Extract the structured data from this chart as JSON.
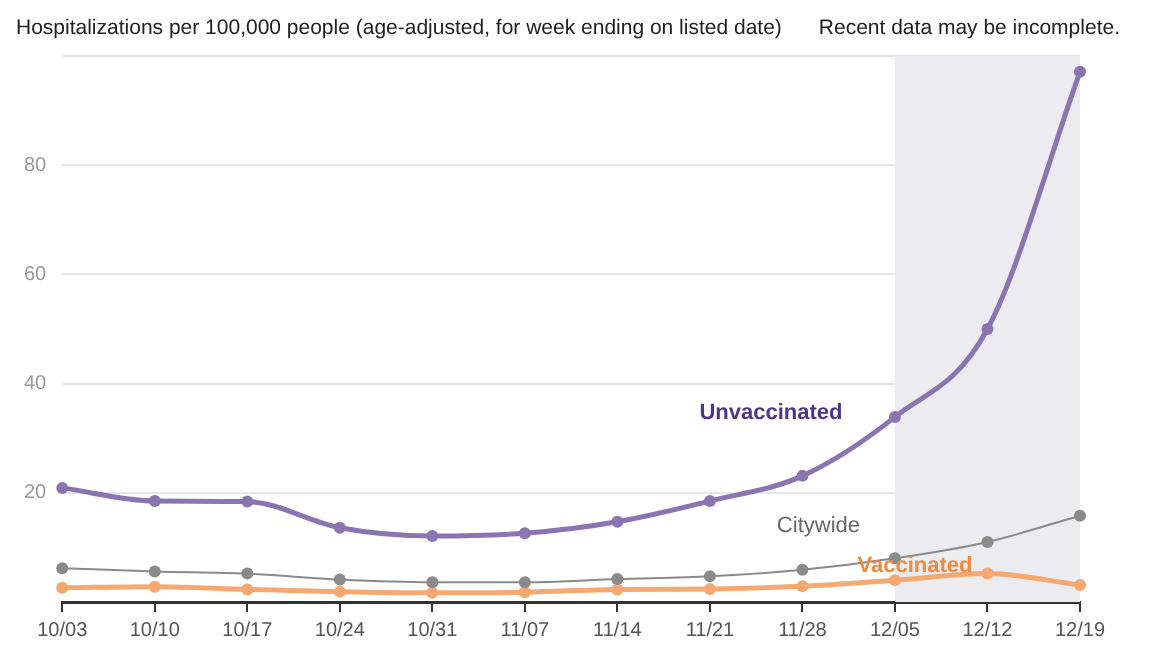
{
  "chart_data": {
    "type": "line",
    "title": "Hospitalizations per 100,000 people (age-adjusted, for week ending on listed date)",
    "categories": [
      "10/03",
      "10/10",
      "10/17",
      "10/24",
      "10/31",
      "11/07",
      "11/14",
      "11/21",
      "11/28",
      "12/05",
      "12/12",
      "12/19"
    ],
    "series": [
      {
        "name": "Unvaccinated",
        "color": "#8a75b0",
        "values": [
          20.9,
          18.5,
          18.4,
          13.6,
          12.1,
          12.6,
          14.7,
          18.5,
          23.1,
          33.9,
          50.0,
          97.1
        ]
      },
      {
        "name": "Citywide",
        "color": "#8a8a8a",
        "values": [
          6.2,
          5.6,
          5.2,
          4.1,
          3.6,
          3.6,
          4.2,
          4.7,
          5.9,
          8.0,
          11.0,
          15.8
        ]
      },
      {
        "name": "Vaccinated",
        "color": "#f5a870",
        "values": [
          2.6,
          2.8,
          2.3,
          1.9,
          1.7,
          1.8,
          2.3,
          2.4,
          2.9,
          4.0,
          5.2,
          3.1
        ]
      }
    ],
    "ylim": [
      0,
      100
    ],
    "yticks": [
      20,
      40,
      60,
      80,
      {
        "value": 100,
        "label": null
      }
    ],
    "bands": [
      {
        "axis": "x",
        "from": "12/05",
        "to": "12/19",
        "label": "Recent data may be incomplete.",
        "color": "#ececf0"
      }
    ],
    "grid": "y",
    "legend": false,
    "marker": "circle",
    "line_style": "solid"
  }
}
